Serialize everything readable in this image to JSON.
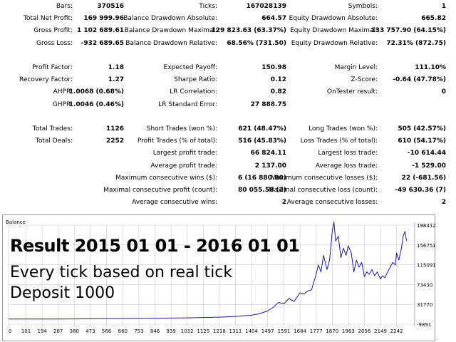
{
  "report": {
    "col1": [
      {
        "label": "Bars:",
        "value": "370516"
      },
      {
        "label": "Total Net Profit:",
        "value": "169 999.96"
      },
      {
        "label": "Gross Profit:",
        "value": "1 102 689.61"
      },
      {
        "label": "Gross Loss:",
        "value": "-932 689.65"
      },
      {
        "label": "Profit Factor:",
        "value": "1.18"
      },
      {
        "label": "Recovery Factor:",
        "value": "1.27"
      },
      {
        "label": "AHPR:",
        "value": "1.0068 (0.68%)"
      },
      {
        "label": "GHPR:",
        "value": "1.0046 (0.46%)"
      },
      {
        "label": "Total Trades:",
        "value": "1126"
      },
      {
        "label": "Total Deals:",
        "value": "2252"
      }
    ],
    "col2": [
      {
        "label": "Ticks:",
        "value": "167028139"
      },
      {
        "label": "Balance Drawdown Absolute:",
        "value": "664.57"
      },
      {
        "label": "Balance Drawdown Maximal:",
        "value": "129 823.63 (63.37%)"
      },
      {
        "label": "Balance Drawdown Relative:",
        "value": "68.56% (731.50)"
      },
      {
        "label": "Expected Payoff:",
        "value": "150.98"
      },
      {
        "label": "Sharpe Ratio:",
        "value": "0.12"
      },
      {
        "label": "LR Correlation:",
        "value": "0.82"
      },
      {
        "label": "LR Standard Error:",
        "value": "27 888.75"
      },
      {
        "label": "Short Trades (won %):",
        "value": "621 (48.47%)"
      },
      {
        "label": "Profit Trades (% of total):",
        "value": "516 (45.83%)"
      },
      {
        "label": "Largest profit trade:",
        "value": "66 824.11"
      },
      {
        "label": "Average profit trade:",
        "value": "2 137.00"
      },
      {
        "label": "Maximum consecutive wins ($):",
        "value": "6 (16 880.80)"
      },
      {
        "label": "Maximal consecutive profit (count):",
        "value": "80 055.58 (2)"
      },
      {
        "label": "Average consecutive wins:",
        "value": "2"
      }
    ],
    "col3": [
      {
        "label": "Symbols:",
        "value": "1"
      },
      {
        "label": "Equity Drawdown Absolute:",
        "value": "665.82"
      },
      {
        "label": "Equity Drawdown Maximal:",
        "value": "133 757.90 (64.15%)"
      },
      {
        "label": "Equity Drawdown Relative:",
        "value": "72.31% (872.75)"
      },
      {
        "label": "Margin Level:",
        "value": "111.10%"
      },
      {
        "label": "Z-Score:",
        "value": "-0.64 (47.78%)"
      },
      {
        "label": "OnTester result:",
        "value": "0"
      },
      {
        "label": "Long Trades (won %):",
        "value": "505 (42.57%)"
      },
      {
        "label": "Loss Trades (% of total):",
        "value": "610 (54.17%)"
      },
      {
        "label": "Largest loss trade:",
        "value": "-10 614.44"
      },
      {
        "label": "Average loss trade:",
        "value": "-1 529.00"
      },
      {
        "label": "Maximum consecutive losses ($):",
        "value": "22 (-681.56)"
      },
      {
        "label": "Maximal consecutive loss (count):",
        "value": "-49 630.36 (7)"
      },
      {
        "label": "Average consecutive losses:",
        "value": "2"
      }
    ]
  },
  "chart": {
    "panel_label": "Balance",
    "overlay_title": "Result 2015 01 01 - 2016 01 01",
    "overlay_line1": "Every tick based on real tick",
    "overlay_line2": "Deposit 1000",
    "line_color": "#1a1a9e",
    "grid_color": "#c8c8c8"
  },
  "chart_data": {
    "type": "line",
    "title": "",
    "xlabel": "",
    "ylabel": "",
    "x_ticks": [
      "0",
      "101",
      "194",
      "287",
      "380",
      "473",
      "566",
      "660",
      "753",
      "846",
      "939",
      "1032",
      "1125",
      "1218",
      "1311",
      "1404",
      "1497",
      "1591",
      "1684",
      "1777",
      "1870",
      "1963",
      "2056",
      "2149",
      "2242"
    ],
    "y_ticks": [
      "198412",
      "156751",
      "115091",
      "73430",
      "31770",
      "-9891"
    ],
    "xlim": [
      0,
      2330
    ],
    "ylim": [
      -9891,
      198412
    ],
    "grid": true,
    "series": [
      {
        "name": "",
        "points": [
          [
            0,
            1000
          ],
          [
            101,
            1000
          ],
          [
            194,
            1050
          ],
          [
            287,
            1100
          ],
          [
            380,
            1200
          ],
          [
            473,
            1300
          ],
          [
            566,
            1500
          ],
          [
            660,
            1800
          ],
          [
            753,
            2100
          ],
          [
            846,
            2500
          ],
          [
            939,
            3000
          ],
          [
            1032,
            3500
          ],
          [
            1125,
            4200
          ],
          [
            1218,
            5000
          ],
          [
            1311,
            6500
          ],
          [
            1404,
            9000
          ],
          [
            1450,
            12000
          ],
          [
            1497,
            18000
          ],
          [
            1530,
            26000
          ],
          [
            1560,
            36000
          ],
          [
            1591,
            33000
          ],
          [
            1620,
            44000
          ],
          [
            1650,
            38000
          ],
          [
            1684,
            56000
          ],
          [
            1705,
            54000
          ],
          [
            1730,
            60000
          ],
          [
            1750,
            62000
          ],
          [
            1777,
            95000
          ],
          [
            1790,
            115000
          ],
          [
            1805,
            100000
          ],
          [
            1820,
            135000
          ],
          [
            1840,
            105000
          ],
          [
            1855,
            125000
          ],
          [
            1870,
            185000
          ],
          [
            1880,
            205000
          ],
          [
            1890,
            165000
          ],
          [
            1905,
            175000
          ],
          [
            1920,
            130000
          ],
          [
            1935,
            150000
          ],
          [
            1950,
            135000
          ],
          [
            1963,
            155000
          ],
          [
            1980,
            140000
          ],
          [
            1995,
            100000
          ],
          [
            2010,
            125000
          ],
          [
            2025,
            110000
          ],
          [
            2040,
            120000
          ],
          [
            2056,
            90000
          ],
          [
            2070,
            100000
          ],
          [
            2085,
            95000
          ],
          [
            2100,
            105000
          ],
          [
            2115,
            92000
          ],
          [
            2130,
            100000
          ],
          [
            2149,
            85000
          ],
          [
            2160,
            92000
          ],
          [
            2175,
            88000
          ],
          [
            2190,
            100000
          ],
          [
            2205,
            110000
          ],
          [
            2220,
            120000
          ],
          [
            2235,
            115000
          ],
          [
            2242,
            140000
          ],
          [
            2255,
            125000
          ],
          [
            2270,
            150000
          ],
          [
            2280,
            175000
          ],
          [
            2290,
            185000
          ],
          [
            2300,
            165000
          ]
        ]
      }
    ]
  }
}
